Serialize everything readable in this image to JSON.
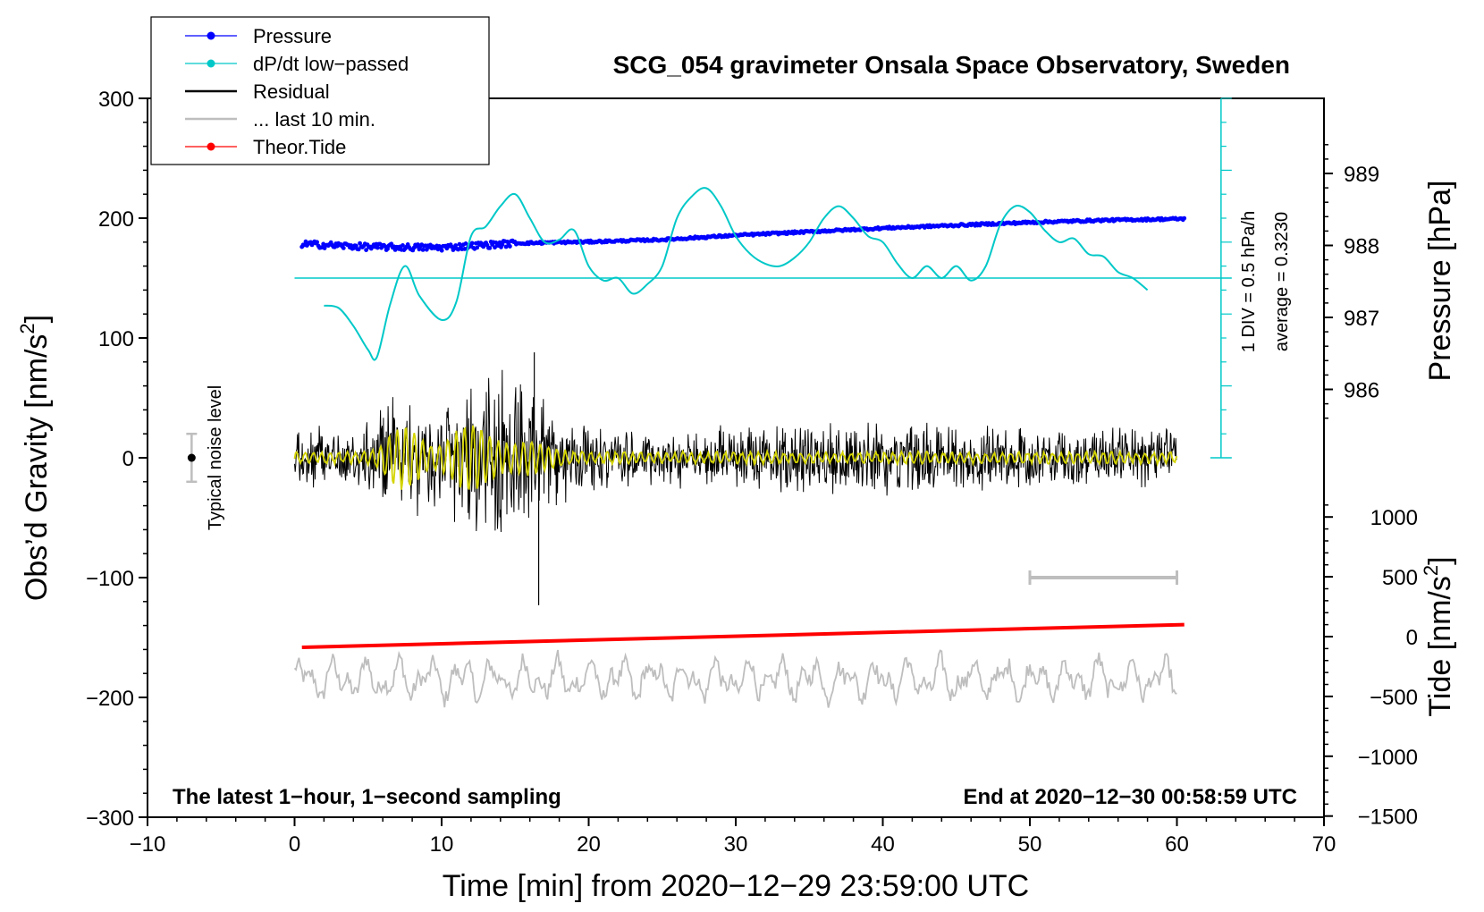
{
  "chart_data": {
    "type": "line",
    "title": "SCG_054 gravimeter Onsala Space Observatory, Sweden",
    "xlabel": "Time [min] from 2020−12−29 23:59:00 UTC",
    "ylabel_left": "Obs’d Gravity [nm/s",
    "ylabel_left_exp": "2",
    "ylabel_left_close": "]",
    "ylabel_pressure": "Pressure [hPa]",
    "ylabel_tide": "Tide [nm/s",
    "ylabel_tide_exp": "2",
    "ylabel_tide_close": "]",
    "xlim": [
      -10,
      70
    ],
    "ylim": [
      -300,
      300
    ],
    "x_ticks": [
      {
        "v": -10,
        "label": "−10"
      },
      {
        "v": 0,
        "label": "0"
      },
      {
        "v": 10,
        "label": "10"
      },
      {
        "v": 20,
        "label": "20"
      },
      {
        "v": 30,
        "label": "30"
      },
      {
        "v": 40,
        "label": "40"
      },
      {
        "v": 50,
        "label": "50"
      },
      {
        "v": 60,
        "label": "60"
      },
      {
        "v": 70,
        "label": "70"
      }
    ],
    "y_ticks": [
      {
        "v": 300,
        "label": "300"
      },
      {
        "v": 200,
        "label": "200"
      },
      {
        "v": 100,
        "label": "100"
      },
      {
        "v": 0,
        "label": "0"
      },
      {
        "v": -100,
        "label": "−100"
      },
      {
        "v": -200,
        "label": "−200"
      },
      {
        "v": -300,
        "label": "−300"
      }
    ],
    "pressure_axis": {
      "range": [
        985,
        990
      ],
      "ticks": [
        {
          "v": 989,
          "label": "989"
        },
        {
          "v": 988,
          "label": "988"
        },
        {
          "v": 987,
          "label": "987"
        },
        {
          "v": 986,
          "label": "986"
        }
      ]
    },
    "tide_axis": {
      "range": [
        -1500,
        1500
      ],
      "ticks": [
        {
          "v": 1000,
          "label": "1000"
        },
        {
          "v": 500,
          "label": "500"
        },
        {
          "v": 0,
          "label": "0"
        },
        {
          "v": -500,
          "label": "−500"
        },
        {
          "v": -1000,
          "label": "−1000"
        },
        {
          "v": -1500,
          "label": "−1500"
        }
      ]
    },
    "legend": [
      {
        "name": "Pressure",
        "color": "#0000ff",
        "marker": true
      },
      {
        "name": "dP/dt low−passed",
        "color": "#00c8c8",
        "marker": true
      },
      {
        "name": "Residual",
        "color": "#000000",
        "marker": false
      },
      {
        "name": "... last 10 min.",
        "color": "#bebebe",
        "marker": false
      },
      {
        "name": "Theor.Tide",
        "color": "#ff0000",
        "marker": true
      }
    ],
    "legend_position": "top-left",
    "series": [
      {
        "name": "Pressure",
        "units": "hPa",
        "color": "#0000ff",
        "x": [
          0.5,
          5,
          10,
          15,
          20,
          25,
          30,
          35,
          40,
          45,
          50,
          55,
          60.5
        ],
        "values": [
          988.02,
          987.98,
          987.97,
          988.03,
          988.05,
          988.08,
          988.14,
          988.19,
          988.24,
          988.28,
          988.32,
          988.35,
          988.37
        ]
      },
      {
        "name": "dP/dt low−passed",
        "units": "gravity-axis units",
        "color": "#00c8c8",
        "x": [
          2,
          3,
          4,
          5,
          5.6,
          6.5,
          7.5,
          8.5,
          10,
          11,
          12,
          13,
          14,
          15,
          16,
          17,
          18,
          19,
          20,
          21,
          22,
          23,
          24,
          25,
          26,
          27,
          28,
          29,
          30,
          31,
          32,
          33,
          34,
          35,
          36,
          37,
          38,
          39,
          40,
          41,
          42,
          43,
          44,
          45,
          46,
          47,
          48,
          49,
          50,
          51,
          52,
          53,
          54,
          55,
          56,
          57,
          58
        ],
        "values": [
          127,
          125,
          110,
          90,
          84,
          128,
          160,
          135,
          115,
          130,
          185,
          193,
          210,
          220,
          200,
          180,
          182,
          190,
          160,
          148,
          150,
          137,
          145,
          160,
          200,
          218,
          225,
          210,
          185,
          170,
          162,
          160,
          167,
          180,
          200,
          210,
          200,
          185,
          180,
          162,
          150,
          160,
          150,
          160,
          148,
          160,
          195,
          210,
          205,
          190,
          180,
          183,
          170,
          168,
          155,
          150,
          140
        ]
      },
      {
        "name": "Theor.Tide",
        "units": "nm/s2",
        "color": "#ff0000",
        "x": [
          0.5,
          60.5
        ],
        "values": [
          -90,
          100
        ]
      }
    ],
    "residual": {
      "x_range": [
        0,
        60
      ],
      "center": 0,
      "peak_max": 88,
      "peak_min": -123
    },
    "last_10_min": {
      "x_range": [
        0,
        60
      ],
      "center": -185,
      "peak_max": -155,
      "peak_min": -215
    },
    "average_line": {
      "value": 150,
      "x_range": [
        0,
        63
      ]
    },
    "dpdt_scale": {
      "x": 63,
      "base": 0,
      "top": 300,
      "div": 20,
      "label": "1 DIV = 0.5 hPa/h",
      "average_label": "average = 0.3230"
    },
    "scale_bar": {
      "x_range": [
        50,
        60
      ],
      "y": -100
    },
    "noise_level": {
      "x": -7,
      "center": 0,
      "half_range": 20,
      "label": "Typical noise level"
    },
    "annotations": {
      "left": "The latest 1−hour, 1−second sampling",
      "right": "End at 2020−12−30 00:58:59 UTC"
    }
  }
}
